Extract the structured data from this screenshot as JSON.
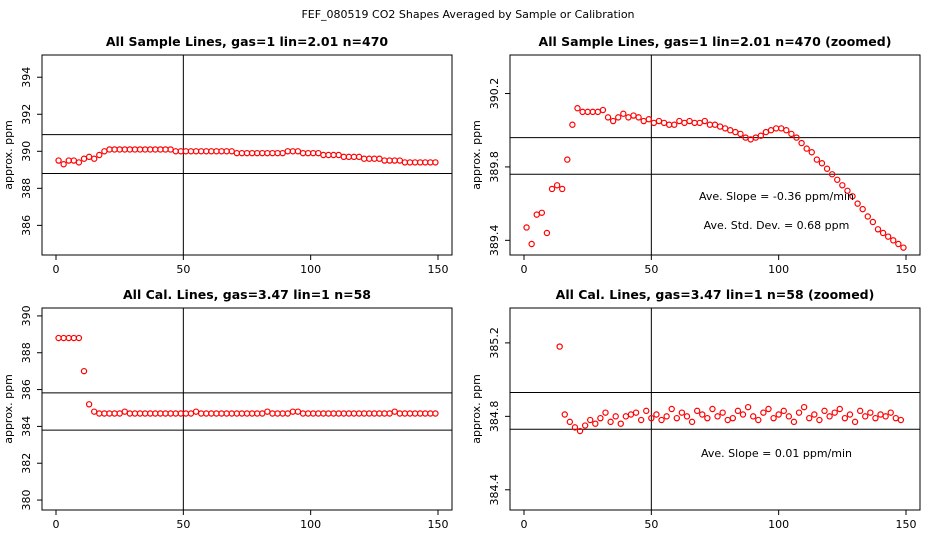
{
  "title": "FEF_080519  CO2 Shapes Averaged by Sample or Calibration",
  "chart_data": [
    {
      "type": "scatter",
      "title": "All Sample Lines, gas=1 lin=2.01 n=470",
      "y_label": "approx. ppm",
      "color": "#ff0000",
      "xlim": [
        -5.5,
        155.5
      ],
      "ylim": [
        384.4,
        395.2
      ],
      "xticks": [
        0,
        50,
        100,
        150
      ],
      "yticks": [
        386,
        388,
        390,
        392,
        394
      ],
      "hlines": [
        390.9,
        388.8
      ],
      "vlines": [
        50
      ],
      "x": [
        1,
        3,
        5,
        7,
        9,
        11,
        13,
        15,
        17,
        19,
        21,
        23,
        25,
        27,
        29,
        31,
        33,
        35,
        37,
        39,
        41,
        43,
        45,
        47,
        49,
        51,
        53,
        55,
        57,
        59,
        61,
        63,
        65,
        67,
        69,
        71,
        73,
        75,
        77,
        79,
        81,
        83,
        85,
        87,
        89,
        91,
        93,
        95,
        97,
        99,
        101,
        103,
        105,
        107,
        109,
        111,
        113,
        115,
        117,
        119,
        121,
        123,
        125,
        127,
        129,
        131,
        133,
        135,
        137,
        139,
        141,
        143,
        145,
        147,
        149
      ],
      "values": [
        389.5,
        389.3,
        389.5,
        389.5,
        389.4,
        389.6,
        389.7,
        389.6,
        389.8,
        390.0,
        390.1,
        390.1,
        390.1,
        390.1,
        390.1,
        390.1,
        390.1,
        390.1,
        390.1,
        390.1,
        390.1,
        390.1,
        390.1,
        390.0,
        390.0,
        390.0,
        390.0,
        390.0,
        390.0,
        390.0,
        390.0,
        390.0,
        390.0,
        390.0,
        390.0,
        389.9,
        389.9,
        389.9,
        389.9,
        389.9,
        389.9,
        389.9,
        389.9,
        389.9,
        389.9,
        390.0,
        390.0,
        390.0,
        389.9,
        389.9,
        389.9,
        389.9,
        389.8,
        389.8,
        389.8,
        389.8,
        389.7,
        389.7,
        389.7,
        389.7,
        389.6,
        389.6,
        389.6,
        389.6,
        389.5,
        389.5,
        389.5,
        389.5,
        389.4,
        389.4,
        389.4,
        389.4,
        389.4,
        389.4,
        389.4
      ]
    },
    {
      "type": "scatter",
      "title": "All Sample Lines, gas=1 lin=2.01 n=470 (zoomed)",
      "y_label": "approx. ppm",
      "color": "#ff0000",
      "xlim": [
        -5.5,
        155.5
      ],
      "ylim": [
        389.32,
        390.41
      ],
      "xticks": [
        0,
        50,
        100,
        150
      ],
      "yticks": [
        389.4,
        389.8,
        390.2
      ],
      "hlines": [
        389.96,
        389.76
      ],
      "vlines": [
        50
      ],
      "annotations": [
        "Ave. Slope = -0.36  ppm/min",
        "Ave. Std. Dev. = 0.68  ppm"
      ],
      "x": [
        1,
        3,
        5,
        7,
        9,
        11,
        13,
        15,
        17,
        19,
        21,
        23,
        25,
        27,
        29,
        31,
        33,
        35,
        37,
        39,
        41,
        43,
        45,
        47,
        49,
        51,
        53,
        55,
        57,
        59,
        61,
        63,
        65,
        67,
        69,
        71,
        73,
        75,
        77,
        79,
        81,
        83,
        85,
        87,
        89,
        91,
        93,
        95,
        97,
        99,
        101,
        103,
        105,
        107,
        109,
        111,
        113,
        115,
        117,
        119,
        121,
        123,
        125,
        127,
        129,
        131,
        133,
        135,
        137,
        139,
        141,
        143,
        145,
        147,
        149
      ],
      "values": [
        389.47,
        389.38,
        389.54,
        389.55,
        389.44,
        389.68,
        389.7,
        389.68,
        389.84,
        390.03,
        390.12,
        390.1,
        390.1,
        390.1,
        390.1,
        390.11,
        390.07,
        390.05,
        390.07,
        390.09,
        390.07,
        390.08,
        390.07,
        390.05,
        390.06,
        390.04,
        390.05,
        390.04,
        390.03,
        390.03,
        390.05,
        390.04,
        390.05,
        390.04,
        390.04,
        390.05,
        390.03,
        390.03,
        390.02,
        390.01,
        390.0,
        389.99,
        389.98,
        389.96,
        389.95,
        389.96,
        389.97,
        389.99,
        390.0,
        390.01,
        390.01,
        390.0,
        389.98,
        389.96,
        389.93,
        389.9,
        389.88,
        389.84,
        389.82,
        389.79,
        389.76,
        389.73,
        389.7,
        389.67,
        389.64,
        389.6,
        389.57,
        389.53,
        389.5,
        389.46,
        389.44,
        389.42,
        389.4,
        389.38,
        389.36
      ]
    },
    {
      "type": "scatter",
      "title": "All Cal. Lines, gas=3.47 lin=1 n=58",
      "y_label": "approx. ppm",
      "color": "#ff0000",
      "xlim": [
        -5.5,
        155.5
      ],
      "ylim": [
        379.46,
        390.43
      ],
      "xticks": [
        0,
        50,
        100,
        150
      ],
      "yticks": [
        380,
        382,
        384,
        386,
        388,
        390
      ],
      "hlines": [
        385.82,
        383.8
      ],
      "vlines": [
        50
      ],
      "x": [
        1,
        3,
        5,
        7,
        9,
        11,
        13,
        15,
        17,
        19,
        21,
        23,
        25,
        27,
        29,
        31,
        33,
        35,
        37,
        39,
        41,
        43,
        45,
        47,
        49,
        51,
        53,
        55,
        57,
        59,
        61,
        63,
        65,
        67,
        69,
        71,
        73,
        75,
        77,
        79,
        81,
        83,
        85,
        87,
        89,
        91,
        93,
        95,
        97,
        99,
        101,
        103,
        105,
        107,
        109,
        111,
        113,
        115,
        117,
        119,
        121,
        123,
        125,
        127,
        129,
        131,
        133,
        135,
        137,
        139,
        141,
        143,
        145,
        147,
        149
      ],
      "values": [
        388.8,
        388.8,
        388.8,
        388.8,
        388.8,
        387.0,
        385.2,
        384.8,
        384.7,
        384.7,
        384.7,
        384.7,
        384.7,
        384.8,
        384.7,
        384.7,
        384.7,
        384.7,
        384.7,
        384.7,
        384.7,
        384.7,
        384.7,
        384.7,
        384.7,
        384.7,
        384.7,
        384.8,
        384.7,
        384.7,
        384.7,
        384.7,
        384.7,
        384.7,
        384.7,
        384.7,
        384.7,
        384.7,
        384.7,
        384.7,
        384.7,
        384.8,
        384.7,
        384.7,
        384.7,
        384.7,
        384.8,
        384.8,
        384.7,
        384.7,
        384.7,
        384.7,
        384.7,
        384.7,
        384.7,
        384.7,
        384.7,
        384.7,
        384.7,
        384.7,
        384.7,
        384.7,
        384.7,
        384.7,
        384.7,
        384.7,
        384.8,
        384.7,
        384.7,
        384.7,
        384.7,
        384.7,
        384.7,
        384.7,
        384.7
      ]
    },
    {
      "type": "scatter",
      "title": "All Cal. Lines, gas=3.47 lin=1 n=58 (zoomed)",
      "y_label": "approx. ppm",
      "color": "#ff0000",
      "xlim": [
        -5.5,
        155.5
      ],
      "ylim": [
        384.29,
        385.39
      ],
      "xticks": [
        0,
        50,
        100,
        150
      ],
      "yticks": [
        384.4,
        384.8,
        385.2
      ],
      "hlines": [
        384.93,
        384.73
      ],
      "vlines": [
        50
      ],
      "annotations": [
        "Ave. Slope =  0.01  ppm/min"
      ],
      "x": [
        14,
        16,
        18,
        20,
        22,
        24,
        26,
        28,
        30,
        32,
        34,
        36,
        38,
        40,
        42,
        44,
        46,
        48,
        50,
        52,
        54,
        56,
        58,
        60,
        62,
        64,
        66,
        68,
        70,
        72,
        74,
        76,
        78,
        80,
        82,
        84,
        86,
        88,
        90,
        92,
        94,
        96,
        98,
        100,
        102,
        104,
        106,
        108,
        110,
        112,
        114,
        116,
        118,
        120,
        122,
        124,
        126,
        128,
        130,
        132,
        134,
        136,
        138,
        140,
        142,
        144,
        146,
        148
      ],
      "values": [
        385.18,
        384.81,
        384.77,
        384.74,
        384.72,
        384.75,
        384.78,
        384.76,
        384.79,
        384.82,
        384.77,
        384.8,
        384.76,
        384.8,
        384.81,
        384.82,
        384.78,
        384.83,
        384.79,
        384.81,
        384.78,
        384.8,
        384.84,
        384.79,
        384.82,
        384.8,
        384.77,
        384.83,
        384.81,
        384.79,
        384.84,
        384.8,
        384.82,
        384.78,
        384.79,
        384.83,
        384.81,
        384.85,
        384.8,
        384.78,
        384.82,
        384.84,
        384.79,
        384.81,
        384.83,
        384.8,
        384.77,
        384.82,
        384.85,
        384.79,
        384.81,
        384.78,
        384.83,
        384.8,
        384.82,
        384.84,
        384.79,
        384.81,
        384.77,
        384.83,
        384.8,
        384.82,
        384.79,
        384.81,
        384.8,
        384.82,
        384.79,
        384.78
      ]
    }
  ]
}
